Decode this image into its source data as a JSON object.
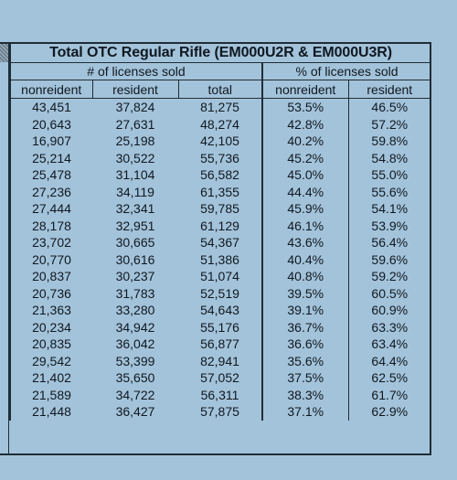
{
  "title": "Total OTC Regular Rifle  (EM000U2R & EM000U3R)",
  "groups": {
    "count_label": "# of licenses sold",
    "percent_label": "% of licenses sold"
  },
  "columns": [
    "nonreident",
    "resident",
    "total",
    "nonreident",
    "resident"
  ],
  "rows": [
    [
      "43,451",
      "37,824",
      "81,275",
      "53.5%",
      "46.5%"
    ],
    [
      "20,643",
      "27,631",
      "48,274",
      "42.8%",
      "57.2%"
    ],
    [
      "16,907",
      "25,198",
      "42,105",
      "40.2%",
      "59.8%"
    ],
    [
      "25,214",
      "30,522",
      "55,736",
      "45.2%",
      "54.8%"
    ],
    [
      "25,478",
      "31,104",
      "56,582",
      "45.0%",
      "55.0%"
    ],
    [
      "27,236",
      "34,119",
      "61,355",
      "44.4%",
      "55.6%"
    ],
    [
      "27,444",
      "32,341",
      "59,785",
      "45.9%",
      "54.1%"
    ],
    [
      "28,178",
      "32,951",
      "61,129",
      "46.1%",
      "53.9%"
    ],
    [
      "23,702",
      "30,665",
      "54,367",
      "43.6%",
      "56.4%"
    ],
    [
      "20,770",
      "30,616",
      "51,386",
      "40.4%",
      "59.6%"
    ],
    [
      "20,837",
      "30,237",
      "51,074",
      "40.8%",
      "59.2%"
    ],
    [
      "20,736",
      "31,783",
      "52,519",
      "39.5%",
      "60.5%"
    ],
    [
      "21,363",
      "33,280",
      "54,643",
      "39.1%",
      "60.9%"
    ],
    [
      "20,234",
      "34,942",
      "55,176",
      "36.7%",
      "63.3%"
    ],
    [
      "20,835",
      "36,042",
      "56,877",
      "36.6%",
      "63.4%"
    ],
    [
      "29,542",
      "53,399",
      "82,941",
      "35.6%",
      "64.4%"
    ],
    [
      "21,402",
      "35,650",
      "57,052",
      "37.5%",
      "62.5%"
    ],
    [
      "21,589",
      "34,722",
      "56,311",
      "38.3%",
      "61.7%"
    ],
    [
      "21,448",
      "36,427",
      "57,875",
      "37.1%",
      "62.9%"
    ]
  ]
}
